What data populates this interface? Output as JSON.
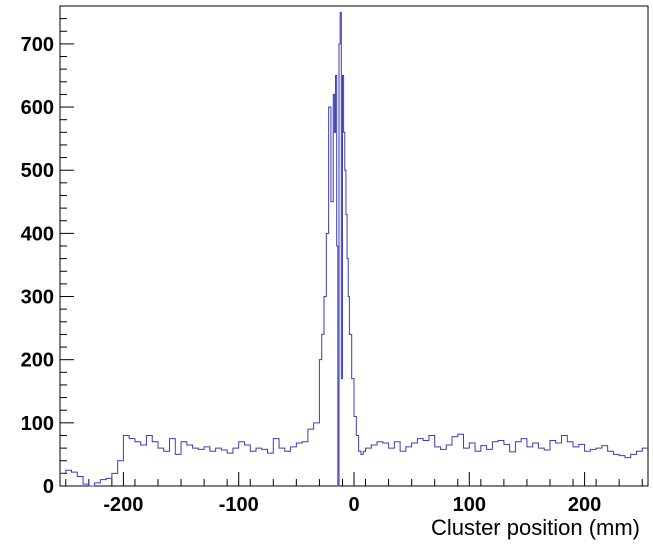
{
  "chart_data": {
    "type": "line",
    "title": "",
    "xlabel": "Cluster position (mm)",
    "ylabel": "",
    "xlim": [
      -255,
      255
    ],
    "ylim": [
      0,
      760
    ],
    "x_ticks": [
      -200,
      -100,
      0,
      100,
      200
    ],
    "y_ticks": [
      0,
      100,
      200,
      300,
      400,
      500,
      600,
      700
    ],
    "x_tick_labels": [
      "-200",
      "-100",
      "0",
      "100",
      "200"
    ],
    "y_tick_labels": [
      "0",
      "100",
      "200",
      "300",
      "400",
      "500",
      "600",
      "700"
    ],
    "grid": false,
    "legend": "none",
    "line_color": "#3c3cb4",
    "series": [
      {
        "x": [
          -255,
          -250,
          -245,
          -240,
          -235,
          -230,
          -225,
          -220,
          -215,
          -210,
          -205,
          -200,
          -195,
          -190,
          -185,
          -180,
          -175,
          -170,
          -165,
          -160,
          -155,
          -150,
          -145,
          -140,
          -135,
          -130,
          -125,
          -120,
          -115,
          -110,
          -105,
          -100,
          -95,
          -90,
          -85,
          -80,
          -75,
          -70,
          -65,
          -60,
          -55,
          -50,
          -45,
          -40,
          -35,
          -30,
          -28,
          -26,
          -24,
          -22,
          -20,
          -18,
          -17,
          -16,
          -15,
          -14,
          -13,
          -12,
          -11,
          -10,
          -9,
          -8,
          -7,
          -6,
          -5,
          -4,
          -2,
          0,
          2,
          4,
          6,
          8,
          10,
          15,
          20,
          25,
          30,
          35,
          40,
          45,
          50,
          55,
          60,
          65,
          70,
          75,
          80,
          85,
          90,
          95,
          100,
          105,
          110,
          115,
          120,
          125,
          130,
          135,
          140,
          145,
          150,
          155,
          160,
          165,
          170,
          175,
          180,
          185,
          190,
          195,
          200,
          205,
          210,
          215,
          220,
          225,
          230,
          235,
          240,
          245,
          250
        ],
        "y": [
          20,
          25,
          22,
          15,
          3,
          0,
          5,
          10,
          12,
          20,
          40,
          80,
          75,
          70,
          65,
          80,
          70,
          60,
          55,
          75,
          50,
          70,
          65,
          60,
          58,
          62,
          55,
          60,
          57,
          52,
          60,
          70,
          65,
          55,
          60,
          58,
          52,
          75,
          60,
          55,
          62,
          68,
          70,
          90,
          100,
          200,
          240,
          300,
          400,
          600,
          450,
          620,
          560,
          650,
          380,
          0,
          700,
          750,
          170,
          650,
          560,
          500,
          430,
          360,
          300,
          240,
          170,
          110,
          80,
          55,
          50,
          55,
          60,
          65,
          70,
          68,
          60,
          70,
          55,
          62,
          68,
          75,
          72,
          80,
          62,
          58,
          65,
          78,
          82,
          60,
          68,
          55,
          64,
          58,
          70,
          72,
          66,
          54,
          70,
          75,
          62,
          68,
          60,
          57,
          72,
          68,
          80,
          70,
          62,
          66,
          55,
          58,
          60,
          64,
          55,
          50,
          48,
          45,
          50,
          55,
          60
        ]
      }
    ]
  }
}
